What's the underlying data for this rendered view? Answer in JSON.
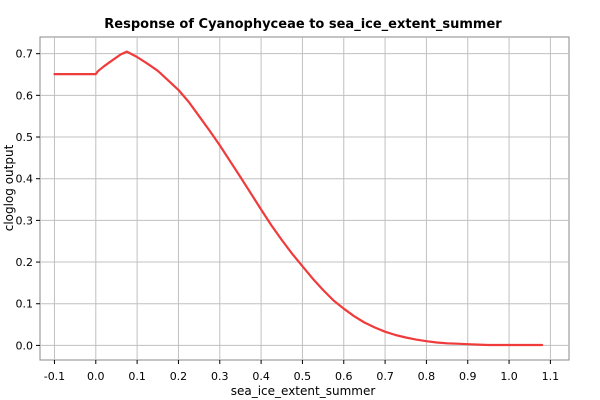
{
  "chart_data": {
    "type": "line",
    "title": "Response of Cyanophyceae to sea_ice_extent_summer",
    "xlabel": "sea_ice_extent_summer",
    "ylabel": "cloglog output",
    "xlim": [
      -0.135,
      1.145
    ],
    "ylim": [
      -0.035,
      0.74
    ],
    "xticks": [
      "-0.1",
      "0.0",
      "0.1",
      "0.2",
      "0.3",
      "0.4",
      "0.5",
      "0.6",
      "0.7",
      "0.8",
      "0.9",
      "1.0",
      "1.1"
    ],
    "yticks": [
      "0.0",
      "0.1",
      "0.2",
      "0.3",
      "0.4",
      "0.5",
      "0.6",
      "0.7"
    ],
    "grid": true,
    "line_color": "#ef3b3b",
    "series": [
      {
        "x": [
          -0.1,
          -0.05,
          0.0,
          0.005,
          0.02,
          0.04,
          0.06,
          0.075,
          0.1,
          0.125,
          0.15,
          0.175,
          0.2,
          0.225,
          0.25,
          0.275,
          0.3,
          0.325,
          0.35,
          0.375,
          0.4,
          0.425,
          0.45,
          0.475,
          0.5,
          0.525,
          0.55,
          0.575,
          0.6,
          0.625,
          0.65,
          0.675,
          0.7,
          0.725,
          0.75,
          0.775,
          0.8,
          0.825,
          0.85,
          0.875,
          0.9,
          0.925,
          0.95,
          1.0,
          1.05,
          1.08
        ],
        "y": [
          0.651,
          0.651,
          0.651,
          0.658,
          0.67,
          0.684,
          0.698,
          0.705,
          0.692,
          0.676,
          0.659,
          0.636,
          0.613,
          0.584,
          0.55,
          0.516,
          0.48,
          0.442,
          0.404,
          0.365,
          0.326,
          0.288,
          0.253,
          0.22,
          0.19,
          0.16,
          0.133,
          0.108,
          0.088,
          0.07,
          0.055,
          0.043,
          0.033,
          0.025,
          0.019,
          0.014,
          0.01,
          0.007,
          0.005,
          0.004,
          0.003,
          0.002,
          0.001,
          0.001,
          0.001,
          0.001
        ]
      }
    ]
  }
}
